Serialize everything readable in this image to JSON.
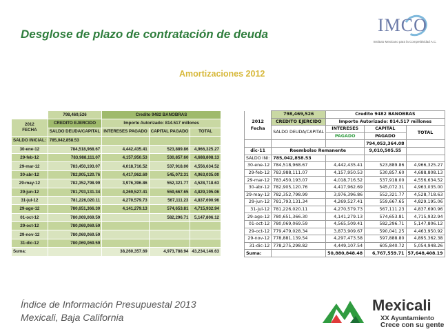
{
  "title": "Desglose de plazo de contratación de deuda",
  "subtitle": "Amortizaciones 2012",
  "imco": {
    "name": "IMCO",
    "tagline": "Instituto Mexicano para la Competitividad A.C."
  },
  "left_table": {
    "credit_exercised": "798,469,526",
    "credit_exercised_label": "CREDITO EJERCIDO",
    "credit_name": "Credito 9482 BANOBRAS",
    "authorized": "Importe Autorizado: 814.517 millones",
    "year": "2012",
    "date_label": "FECHA",
    "col_balance": "SALDO DEUDA/CAPITAL",
    "col_interest": "INTERESES PAGADO",
    "col_capital": "CAPITAL PAGADO",
    "col_total": "TOTAL",
    "opening_label": "SALDO INICIAL:",
    "opening_value": "785,042,858.53",
    "rows": [
      {
        "date": "30-ene-12",
        "balance": "784,518,968.67",
        "interest": "4,442,435.41",
        "capital": "523,889.86",
        "total": "4,966,325.27"
      },
      {
        "date": "29-feb-12",
        "balance": "783,988,111.07",
        "interest": "4,157,950.53",
        "capital": "530,857.60",
        "total": "4,688,808.13"
      },
      {
        "date": "29-mar-12",
        "balance": "783,450,193.07",
        "interest": "4,018,716.52",
        "capital": "537,918.00",
        "total": "4,556,634.52"
      },
      {
        "date": "30-abr-12",
        "balance": "782,905,120.76",
        "interest": "4,417,962.69",
        "capital": "545,072.31",
        "total": "4,963,035.00"
      },
      {
        "date": "29-may-12",
        "balance": "782,352,798.99",
        "interest": "3,976,396.86",
        "capital": "552,321.77",
        "total": "4,528,718.63"
      },
      {
        "date": "29-jun-12",
        "balance": "781,793,131.34",
        "interest": "4,269,527.41",
        "capital": "559,667.65",
        "total": "4,829,195.06"
      },
      {
        "date": "31-jul-12",
        "balance": "781,226,020.11",
        "interest": "4,270,579.73",
        "capital": "567,111.23",
        "total": "4,837,690.96"
      },
      {
        "date": "29-ago-12",
        "balance": "780,651,366.30",
        "interest": "4,141,279.13",
        "capital": "574,653.81",
        "total": "4,715,932.94"
      },
      {
        "date": "01-oct-12",
        "balance": "780,069,069.59",
        "interest": "",
        "capital": "582,296.71",
        "total": "5,147,806.12"
      },
      {
        "date": "29-oct-12",
        "balance": "780,069,069.59",
        "interest": "",
        "capital": "",
        "total": ""
      },
      {
        "date": "29-nov-12",
        "balance": "780,069,069.59",
        "interest": "",
        "capital": "",
        "total": ""
      },
      {
        "date": "31-dic-12",
        "balance": "780,069,069.59",
        "interest": "",
        "capital": "",
        "total": ""
      }
    ],
    "sum_label": "Suma:",
    "sum_interest": "38,260,357.69",
    "sum_capital": "4,973,788.94",
    "sum_total": "43,234,146.63"
  },
  "right_table": {
    "credit_exercised": "798,469,526",
    "credit_exercised_label": "CREDITO EJERCIDO",
    "credit_name": "Credito 9482 BANOBRAS",
    "authorized": "Importe Autorizado:   814.517 millones",
    "year": "2012",
    "date_label": "Fecha",
    "col_balance": "SALDO DEUDA/CAPITAL",
    "col_interest": "INTERESES",
    "col_interest_sub": "PAGADO",
    "col_capital": "CAPITAL",
    "col_capital_sub": "PAGADO",
    "col_total": "TOTAL",
    "pre_value": "794,053,364.08",
    "dec11_label": "dic-11",
    "remaining_label": "Reembolso Remanente",
    "remaining_value": "9,010,505.55",
    "opening_label": "SALDO INI:",
    "opening_value": "785,042,858.53",
    "rows": [
      {
        "date": "30-ene-12",
        "balance": "784,518,968.67",
        "interest": "4,442,435.41",
        "capital": "523,889.86",
        "total": "4,966,325.27"
      },
      {
        "date": "29-feb-12",
        "balance": "783,988,111.07",
        "interest": "4,157,950.53",
        "capital": "530,857.60",
        "total": "4,688,808.13"
      },
      {
        "date": "29-mar-12",
        "balance": "783,450,193.07",
        "interest": "4,018,716.52",
        "capital": "537,918.00",
        "total": "4,556,634.52"
      },
      {
        "date": "30-abr-12",
        "balance": "782,905,120.76",
        "interest": "4,417,962.69",
        "capital": "545,072.31",
        "total": "4,963,035.00"
      },
      {
        "date": "29-may-12",
        "balance": "782,352,798.99",
        "interest": "3,976,396.86",
        "capital": "552,321.77",
        "total": "4,528,718.63"
      },
      {
        "date": "29-jun-12",
        "balance": "781,793,131.34",
        "interest": "4,269,527.41",
        "capital": "559,667.65",
        "total": "4,829,195.06"
      },
      {
        "date": "31-jul-12",
        "balance": "781,226,020.11",
        "interest": "4,270,579.73",
        "capital": "567,111.23",
        "total": "4,837,690.96"
      },
      {
        "date": "29-ago-12",
        "balance": "780,651,366.30",
        "interest": "4,141,279.13",
        "capital": "574,653.81",
        "total": "4,715,932.94"
      },
      {
        "date": "01-oct-12",
        "balance": "780,069,069.59",
        "interest": "4,565,509.41",
        "capital": "582,296.71",
        "total": "5,147,806.12"
      },
      {
        "date": "29-oct-12",
        "balance": "779,479,028.34",
        "interest": "3,873,909.67",
        "capital": "590,041.25",
        "total": "4,463,950.92"
      },
      {
        "date": "29-nov-12",
        "balance": "778,881,139.54",
        "interest": "4,297,473.58",
        "capital": "597,888.80",
        "total": "4,895,362.38"
      },
      {
        "date": "31-dic-12",
        "balance": "778,275,298.82",
        "interest": "4,449,107.54",
        "capital": "605,840.72",
        "total": "5,054,948.26"
      }
    ],
    "sum_label": "Suma:",
    "sum_interest": "50,880,848.48",
    "sum_capital": "6,767,559.71",
    "sum_total": "57,648,408.19"
  },
  "footer": {
    "line1": "Índice de Información Presupuestal 2013",
    "line2": "Mexicali, Baja California"
  },
  "mexicali": {
    "name": "Mexicali",
    "line1": "XX Ayuntamiento",
    "line2": "Crece con su gente"
  },
  "colors": {
    "title_green": "#2e7d3c",
    "subtitle_gold": "#d7b83a",
    "table_green": "#c9d8a3"
  }
}
